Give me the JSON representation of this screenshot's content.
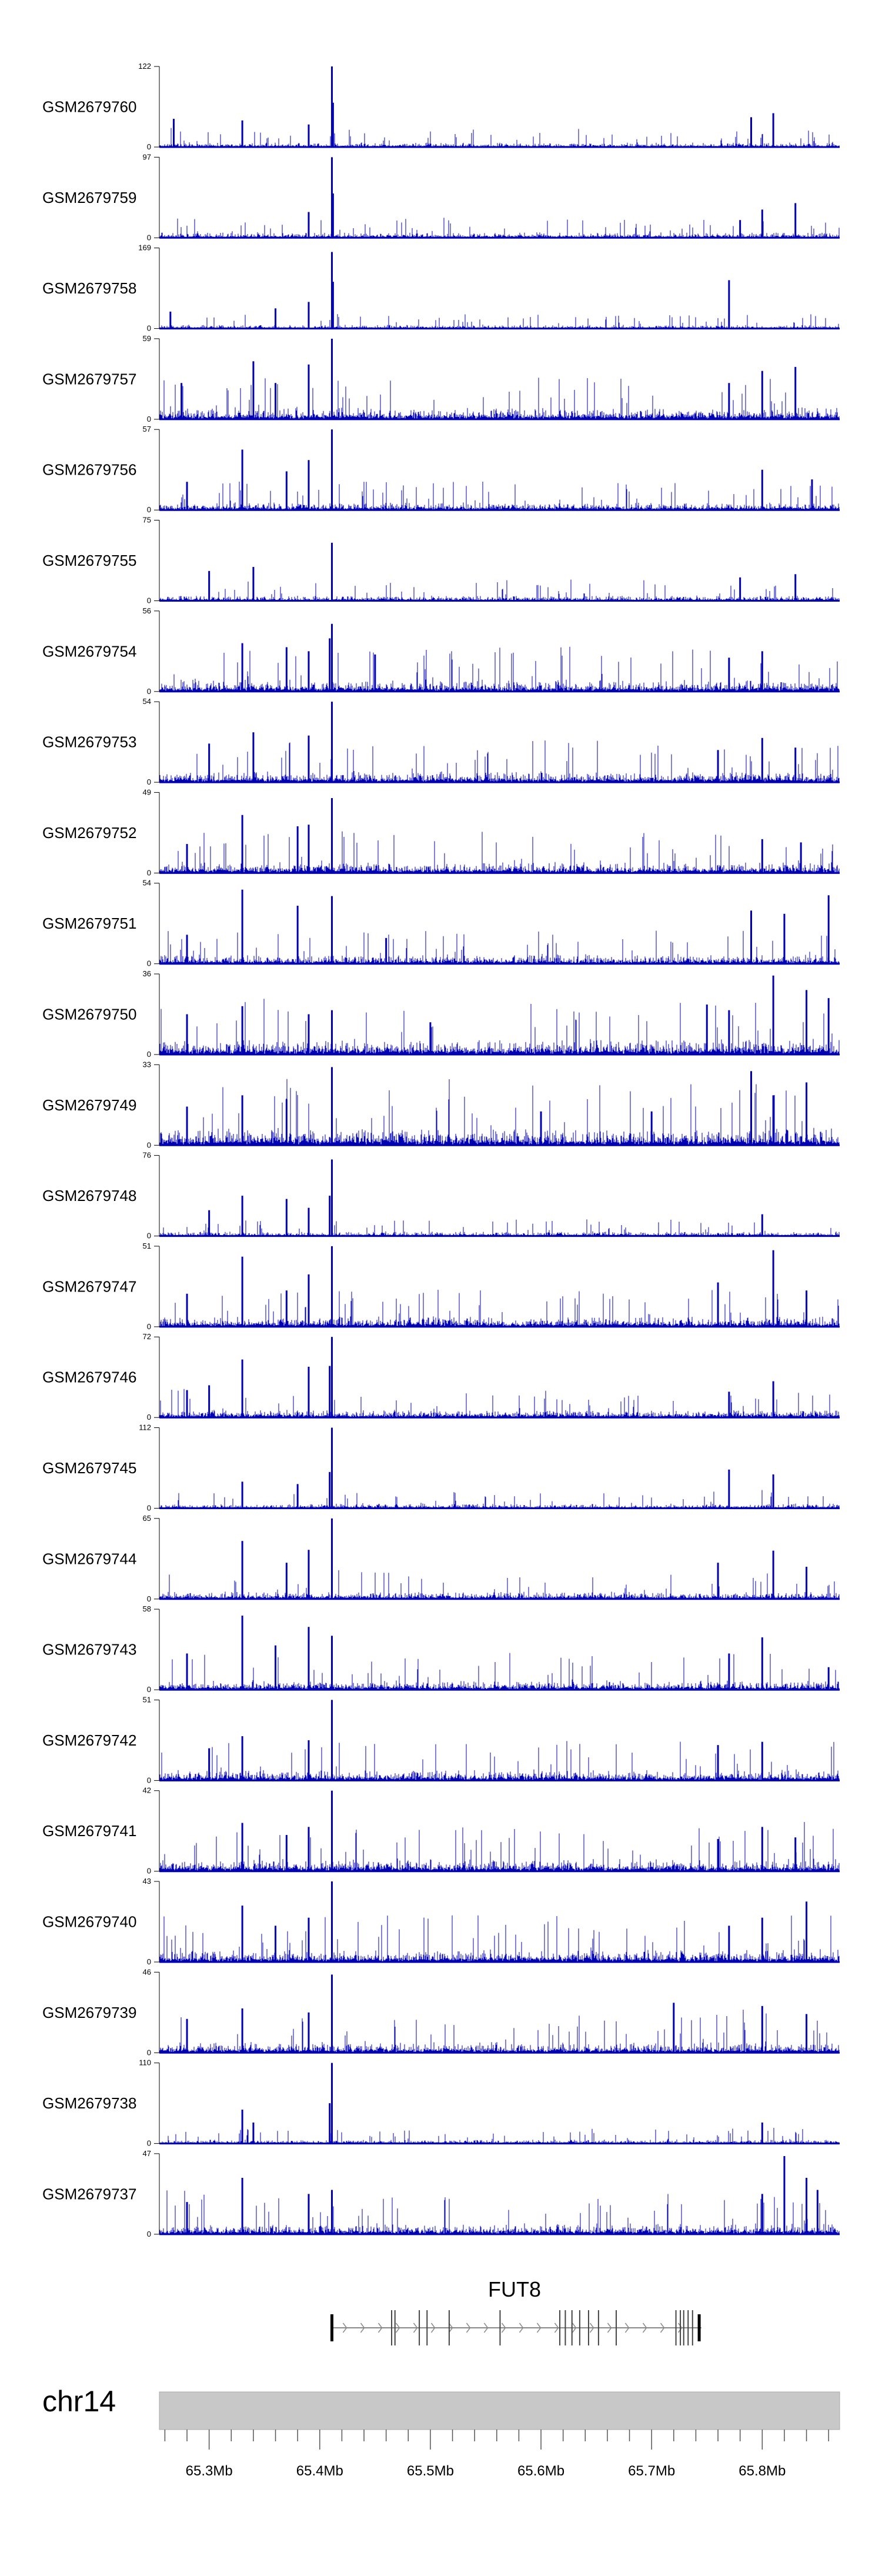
{
  "chart_data": {
    "type": "bar",
    "chromosome": "chr14",
    "gene": {
      "name": "FUT8",
      "start_mb": 65.411,
      "end_mb": 65.745,
      "strand": "+",
      "exon_starts_mb": [
        65.411,
        65.465,
        65.468,
        65.49,
        65.497,
        65.517,
        65.563,
        65.617,
        65.622,
        65.628,
        65.635,
        65.643,
        65.652,
        65.668,
        65.722,
        65.726,
        65.729,
        65.733,
        65.737,
        65.743
      ]
    },
    "x_range_mb": [
      65.255,
      65.87
    ],
    "x_ticks_mb": [
      65.3,
      65.4,
      65.5,
      65.6,
      65.7,
      65.8
    ],
    "x_tick_labels": [
      "65.3Mb",
      "65.4Mb",
      "65.5Mb",
      "65.6Mb",
      "65.7Mb",
      "65.8Mb"
    ],
    "color": "#0000b3",
    "ymin_label": "0",
    "grid": false,
    "legend": "none",
    "tracks": [
      {
        "name": "GSM2679760",
        "ymax": 122,
        "bg": 0.06,
        "peaks": [
          [
            65.411,
            1.0
          ],
          [
            65.412,
            0.55
          ],
          [
            65.33,
            0.33
          ],
          [
            65.39,
            0.28
          ],
          [
            65.81,
            0.42
          ],
          [
            65.79,
            0.37
          ],
          [
            65.268,
            0.35
          ]
        ]
      },
      {
        "name": "GSM2679759",
        "ymax": 97,
        "bg": 0.07,
        "peaks": [
          [
            65.411,
            1.0
          ],
          [
            65.412,
            0.55
          ],
          [
            65.39,
            0.32
          ],
          [
            65.8,
            0.35
          ],
          [
            65.83,
            0.43
          ],
          [
            65.78,
            0.22
          ]
        ]
      },
      {
        "name": "GSM2679758",
        "ymax": 169,
        "bg": 0.05,
        "peaks": [
          [
            65.411,
            0.95
          ],
          [
            65.412,
            0.58
          ],
          [
            65.77,
            0.6
          ],
          [
            65.36,
            0.25
          ],
          [
            65.39,
            0.33
          ],
          [
            65.265,
            0.21
          ]
        ]
      },
      {
        "name": "GSM2679757",
        "ymax": 59,
        "bg": 0.15,
        "peaks": [
          [
            65.411,
            1.0
          ],
          [
            65.34,
            0.72
          ],
          [
            65.39,
            0.68
          ],
          [
            65.36,
            0.45
          ],
          [
            65.8,
            0.6
          ],
          [
            65.83,
            0.65
          ],
          [
            65.77,
            0.45
          ],
          [
            65.275,
            0.45
          ]
        ]
      },
      {
        "name": "GSM2679756",
        "ymax": 57,
        "bg": 0.1,
        "peaks": [
          [
            65.411,
            1.0
          ],
          [
            65.33,
            0.75
          ],
          [
            65.39,
            0.62
          ],
          [
            65.37,
            0.48
          ],
          [
            65.8,
            0.5
          ],
          [
            65.845,
            0.38
          ],
          [
            65.28,
            0.35
          ]
        ]
      },
      {
        "name": "GSM2679755",
        "ymax": 75,
        "bg": 0.07,
        "peaks": [
          [
            65.411,
            0.72
          ],
          [
            65.34,
            0.42
          ],
          [
            65.3,
            0.37
          ],
          [
            65.83,
            0.33
          ],
          [
            65.78,
            0.29
          ]
        ]
      },
      {
        "name": "GSM2679754",
        "ymax": 56,
        "bg": 0.15,
        "peaks": [
          [
            65.411,
            0.84
          ],
          [
            65.409,
            0.66
          ],
          [
            65.33,
            0.6
          ],
          [
            65.37,
            0.55
          ],
          [
            65.39,
            0.5
          ],
          [
            65.45,
            0.46
          ],
          [
            65.8,
            0.5
          ],
          [
            65.77,
            0.42
          ]
        ]
      },
      {
        "name": "GSM2679753",
        "ymax": 54,
        "bg": 0.14,
        "peaks": [
          [
            65.411,
            1.0
          ],
          [
            65.34,
            0.62
          ],
          [
            65.39,
            0.58
          ],
          [
            65.3,
            0.48
          ],
          [
            65.8,
            0.55
          ],
          [
            65.83,
            0.43
          ],
          [
            65.76,
            0.4
          ]
        ]
      },
      {
        "name": "GSM2679752",
        "ymax": 49,
        "bg": 0.14,
        "peaks": [
          [
            65.411,
            0.93
          ],
          [
            65.33,
            0.72
          ],
          [
            65.38,
            0.58
          ],
          [
            65.39,
            0.6
          ],
          [
            65.28,
            0.36
          ],
          [
            65.8,
            0.42
          ],
          [
            65.835,
            0.38
          ]
        ]
      },
      {
        "name": "GSM2679751",
        "ymax": 54,
        "bg": 0.12,
        "peaks": [
          [
            65.411,
            0.84
          ],
          [
            65.33,
            0.92
          ],
          [
            65.38,
            0.72
          ],
          [
            65.28,
            0.36
          ],
          [
            65.86,
            0.85
          ],
          [
            65.79,
            0.66
          ],
          [
            65.82,
            0.62
          ],
          [
            65.46,
            0.32
          ]
        ]
      },
      {
        "name": "GSM2679750",
        "ymax": 36,
        "bg": 0.2,
        "peaks": [
          [
            65.411,
            0.55
          ],
          [
            65.33,
            0.6
          ],
          [
            65.28,
            0.5
          ],
          [
            65.39,
            0.5
          ],
          [
            65.81,
            0.98
          ],
          [
            65.84,
            0.8
          ],
          [
            65.86,
            0.7
          ],
          [
            65.75,
            0.62
          ],
          [
            65.77,
            0.55
          ],
          [
            65.5,
            0.4
          ]
        ]
      },
      {
        "name": "GSM2679749",
        "ymax": 33,
        "bg": 0.22,
        "peaks": [
          [
            65.411,
            0.97
          ],
          [
            65.33,
            0.62
          ],
          [
            65.37,
            0.57
          ],
          [
            65.28,
            0.48
          ],
          [
            65.79,
            0.92
          ],
          [
            65.81,
            0.62
          ],
          [
            65.84,
            0.78
          ],
          [
            65.6,
            0.42
          ],
          [
            65.7,
            0.42
          ]
        ]
      },
      {
        "name": "GSM2679748",
        "ymax": 76,
        "bg": 0.06,
        "peaks": [
          [
            65.411,
            0.95
          ],
          [
            65.409,
            0.5
          ],
          [
            65.33,
            0.5
          ],
          [
            65.37,
            0.46
          ],
          [
            65.39,
            0.35
          ],
          [
            65.3,
            0.32
          ],
          [
            65.8,
            0.27
          ]
        ]
      },
      {
        "name": "GSM2679747",
        "ymax": 51,
        "bg": 0.13,
        "peaks": [
          [
            65.411,
            1.0
          ],
          [
            65.33,
            0.87
          ],
          [
            65.39,
            0.65
          ],
          [
            65.37,
            0.45
          ],
          [
            65.28,
            0.41
          ],
          [
            65.81,
            0.95
          ],
          [
            65.76,
            0.55
          ],
          [
            65.84,
            0.45
          ]
        ]
      },
      {
        "name": "GSM2679746",
        "ymax": 72,
        "bg": 0.1,
        "peaks": [
          [
            65.411,
            1.0
          ],
          [
            65.409,
            0.64
          ],
          [
            65.33,
            0.72
          ],
          [
            65.39,
            0.63
          ],
          [
            65.3,
            0.4
          ],
          [
            65.28,
            0.34
          ],
          [
            65.81,
            0.45
          ],
          [
            65.77,
            0.32
          ]
        ]
      },
      {
        "name": "GSM2679745",
        "ymax": 112,
        "bg": 0.06,
        "peaks": [
          [
            65.411,
            1.0
          ],
          [
            65.409,
            0.45
          ],
          [
            65.33,
            0.33
          ],
          [
            65.38,
            0.3
          ],
          [
            65.77,
            0.48
          ],
          [
            65.81,
            0.42
          ]
        ]
      },
      {
        "name": "GSM2679744",
        "ymax": 65,
        "bg": 0.1,
        "peaks": [
          [
            65.411,
            1.0
          ],
          [
            65.33,
            0.72
          ],
          [
            65.39,
            0.61
          ],
          [
            65.37,
            0.45
          ],
          [
            65.81,
            0.6
          ],
          [
            65.76,
            0.45
          ],
          [
            65.84,
            0.4
          ]
        ]
      },
      {
        "name": "GSM2679743",
        "ymax": 58,
        "bg": 0.12,
        "peaks": [
          [
            65.411,
            0.67
          ],
          [
            65.33,
            0.92
          ],
          [
            65.39,
            0.78
          ],
          [
            65.36,
            0.55
          ],
          [
            65.28,
            0.45
          ],
          [
            65.8,
            0.65
          ],
          [
            65.77,
            0.45
          ],
          [
            65.86,
            0.28
          ]
        ]
      },
      {
        "name": "GSM2679742",
        "ymax": 51,
        "bg": 0.14,
        "peaks": [
          [
            65.411,
            1.0
          ],
          [
            65.33,
            0.55
          ],
          [
            65.39,
            0.5
          ],
          [
            65.3,
            0.4
          ],
          [
            65.8,
            0.48
          ],
          [
            65.76,
            0.44
          ]
        ]
      },
      {
        "name": "GSM2679741",
        "ymax": 42,
        "bg": 0.16,
        "peaks": [
          [
            65.411,
            1.0
          ],
          [
            65.33,
            0.6
          ],
          [
            65.39,
            0.55
          ],
          [
            65.37,
            0.45
          ],
          [
            65.8,
            0.55
          ],
          [
            65.83,
            0.42
          ],
          [
            65.76,
            0.4
          ]
        ]
      },
      {
        "name": "GSM2679740",
        "ymax": 43,
        "bg": 0.16,
        "peaks": [
          [
            65.411,
            1.0
          ],
          [
            65.33,
            0.7
          ],
          [
            65.39,
            0.55
          ],
          [
            65.36,
            0.45
          ],
          [
            65.84,
            0.75
          ],
          [
            65.8,
            0.55
          ],
          [
            65.77,
            0.45
          ]
        ]
      },
      {
        "name": "GSM2679739",
        "ymax": 46,
        "bg": 0.14,
        "peaks": [
          [
            65.411,
            0.97
          ],
          [
            65.33,
            0.55
          ],
          [
            65.39,
            0.5
          ],
          [
            65.28,
            0.42
          ],
          [
            65.72,
            0.62
          ],
          [
            65.8,
            0.58
          ],
          [
            65.84,
            0.48
          ]
        ]
      },
      {
        "name": "GSM2679738",
        "ymax": 110,
        "bg": 0.05,
        "peaks": [
          [
            65.411,
            1.0
          ],
          [
            65.409,
            0.5
          ],
          [
            65.33,
            0.42
          ],
          [
            65.34,
            0.26
          ],
          [
            65.8,
            0.26
          ]
        ]
      },
      {
        "name": "GSM2679737",
        "ymax": 47,
        "bg": 0.14,
        "peaks": [
          [
            65.411,
            0.55
          ],
          [
            65.33,
            0.7
          ],
          [
            65.39,
            0.5
          ],
          [
            65.28,
            0.4
          ],
          [
            65.82,
            0.97
          ],
          [
            65.84,
            0.7
          ],
          [
            65.85,
            0.55
          ],
          [
            65.8,
            0.5
          ]
        ]
      }
    ]
  }
}
